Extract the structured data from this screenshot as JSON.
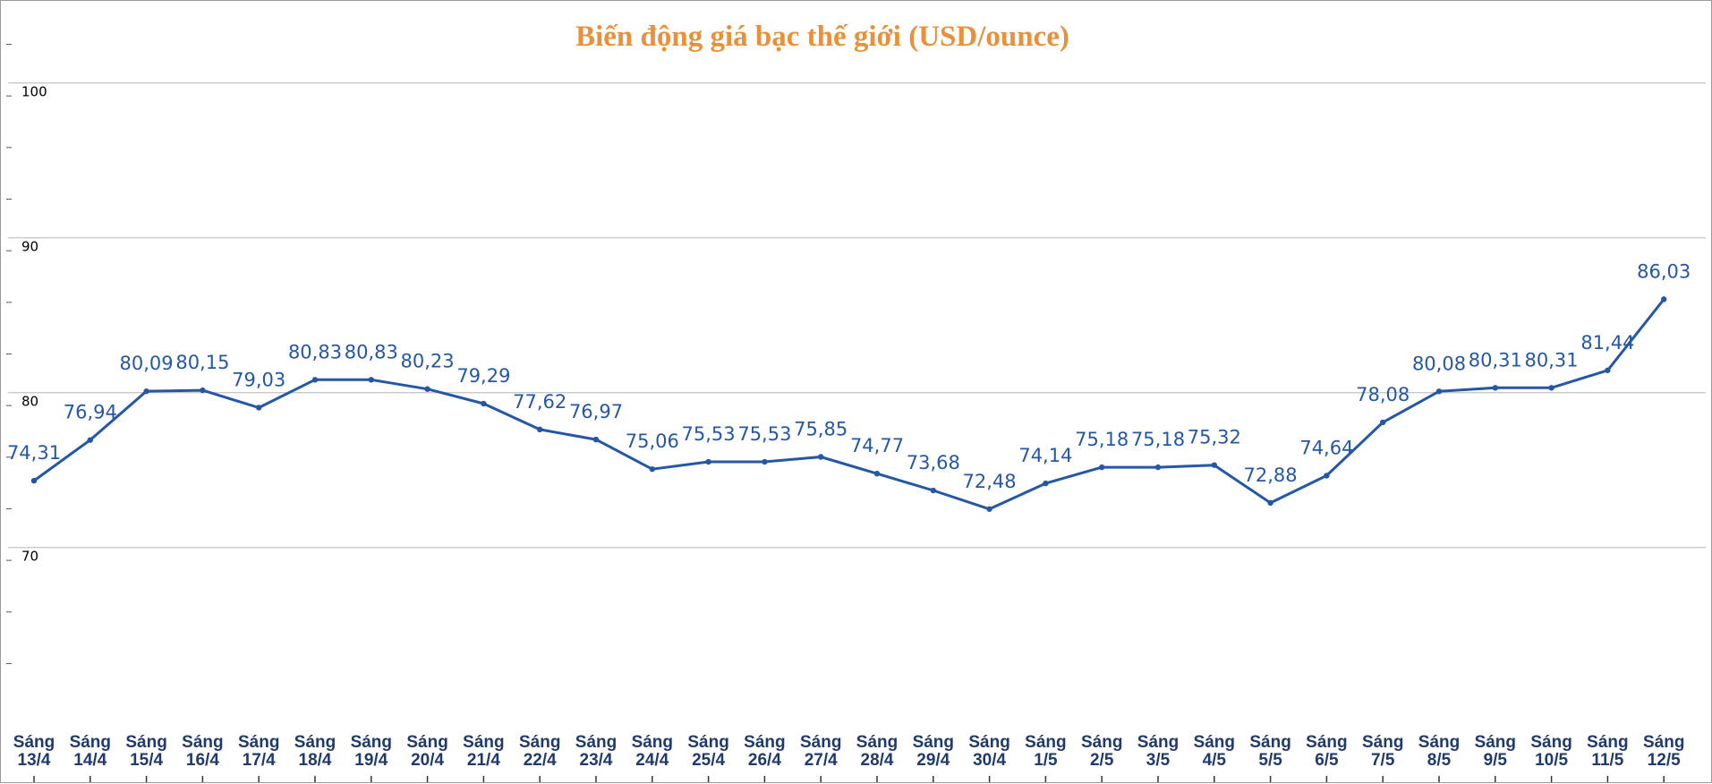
{
  "chart_data": {
    "type": "line",
    "title": "Biến động giá bạc thế giới (USD/ounce)",
    "xlabel": "",
    "ylabel": "",
    "ylim": [
      60,
      110
    ],
    "yticks": [
      "70",
      "80",
      "90",
      "100"
    ],
    "grid": true,
    "legend": "none",
    "categories": [
      "Sáng 13/4",
      "Sáng 14/4",
      "Sáng 15/4",
      "Sáng 16/4",
      "Sáng 17/4",
      "Sáng 18/4",
      "Sáng 19/4",
      "Sáng 20/4",
      "Sáng 21/4",
      "Sáng 22/4",
      "Sáng 23/4",
      "Sáng 24/4",
      "Sáng 25/4",
      "Sáng 26/4",
      "Sáng 27/4",
      "Sáng 28/4",
      "Sáng 29/4",
      "Sáng 30/4",
      "Sáng 1/5",
      "Sáng 2/5",
      "Sáng 3/5",
      "Sáng 4/5",
      "Sáng 5/5",
      "Sáng 6/5",
      "Sáng 7/5",
      "Sáng 8/5",
      "Sáng 9/5",
      "Sáng 10/5",
      "Sáng 11/5",
      "Sáng 12/5"
    ],
    "values": [
      74.31,
      76.94,
      80.09,
      80.15,
      79.03,
      80.83,
      80.83,
      80.23,
      79.29,
      77.62,
      76.97,
      75.06,
      75.53,
      75.53,
      75.85,
      74.77,
      73.68,
      72.48,
      74.14,
      75.18,
      75.18,
      75.32,
      72.88,
      74.64,
      78.08,
      80.08,
      80.31,
      80.31,
      81.44,
      86.03
    ],
    "data_labels": [
      "74,31",
      "76,94",
      "80,09",
      "80,15",
      "79,03",
      "80,83",
      "80,83",
      "80,23",
      "79,29",
      "77,62",
      "76,97",
      "75,06",
      "75,53",
      "75,53",
      "75,85",
      "74,77",
      "73,68",
      "72,48",
      "74,14",
      "75,18",
      "75,18",
      "75,32",
      "72,88",
      "74,64",
      "78,08",
      "80,08",
      "80,31",
      "80,31",
      "81,44",
      "86,03"
    ],
    "colors": {
      "title": "#e8913a",
      "line": "#2457a6",
      "label": "#2457a6",
      "xtick": "#1f3b6e",
      "grid": "#c8c8c8"
    }
  }
}
